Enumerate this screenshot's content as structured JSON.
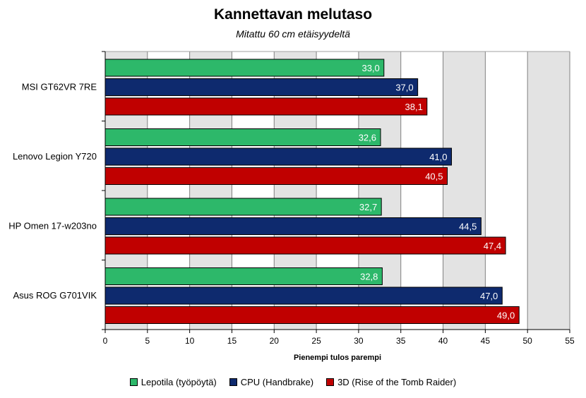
{
  "chart_data": {
    "type": "bar",
    "orientation": "horizontal",
    "title": "Kannettavan melutaso",
    "subtitle": "Mitattu 60 cm etäisyydeltä",
    "xlabel": "Pienempi tulos parempi",
    "ylabel": "",
    "xlim": [
      0,
      55
    ],
    "x_ticks": [
      0,
      5,
      10,
      15,
      20,
      25,
      30,
      35,
      40,
      45,
      50,
      55
    ],
    "grid": true,
    "legend_position": "bottom",
    "categories": [
      "MSI GT62VR 7RE",
      "Lenovo Legion Y720",
      "HP Omen 17-w203no",
      "Asus ROG G701VIK"
    ],
    "series": [
      {
        "name": "Lepotila (työpöytä)",
        "color": "#2db86a",
        "values": [
          33.0,
          32.6,
          32.7,
          32.8
        ],
        "labels": [
          "33,0",
          "32,6",
          "32,7",
          "32,8"
        ]
      },
      {
        "name": "CPU (Handbrake)",
        "color": "#0e2a6e",
        "values": [
          37.0,
          41.0,
          44.5,
          47.0
        ],
        "labels": [
          "37,0",
          "41,0",
          "44,5",
          "47,0"
        ]
      },
      {
        "name": "3D (Rise of the Tomb Raider)",
        "color": "#c00000",
        "values": [
          38.1,
          40.5,
          47.4,
          49.0
        ],
        "labels": [
          "38,1",
          "40,5",
          "47,4",
          "49,0"
        ]
      }
    ]
  }
}
